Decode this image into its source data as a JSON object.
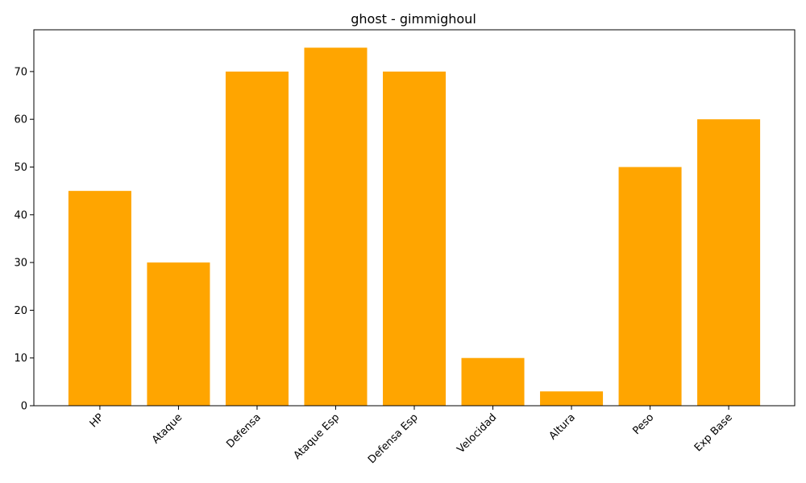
{
  "chart_data": {
    "type": "bar",
    "title": "ghost - gimmighoul",
    "xlabel": "",
    "ylabel": "",
    "categories": [
      "HP",
      "Ataque",
      "Defensa",
      "Ataque Esp",
      "Defensa Esp",
      "Velocidad",
      "Altura",
      "Peso",
      "Exp Base"
    ],
    "values": [
      45,
      30,
      70,
      75,
      70,
      10,
      3,
      50,
      60
    ],
    "ylim": [
      0,
      78.75
    ],
    "yticks": [
      0,
      10,
      20,
      30,
      40,
      50,
      60,
      70
    ],
    "ytick_labels": [
      "0",
      "10",
      "20",
      "30",
      "40",
      "50",
      "60",
      "70"
    ],
    "x_tick_rotation": 45,
    "grid": false,
    "legend": "none",
    "bar_color": "#FFA500"
  }
}
